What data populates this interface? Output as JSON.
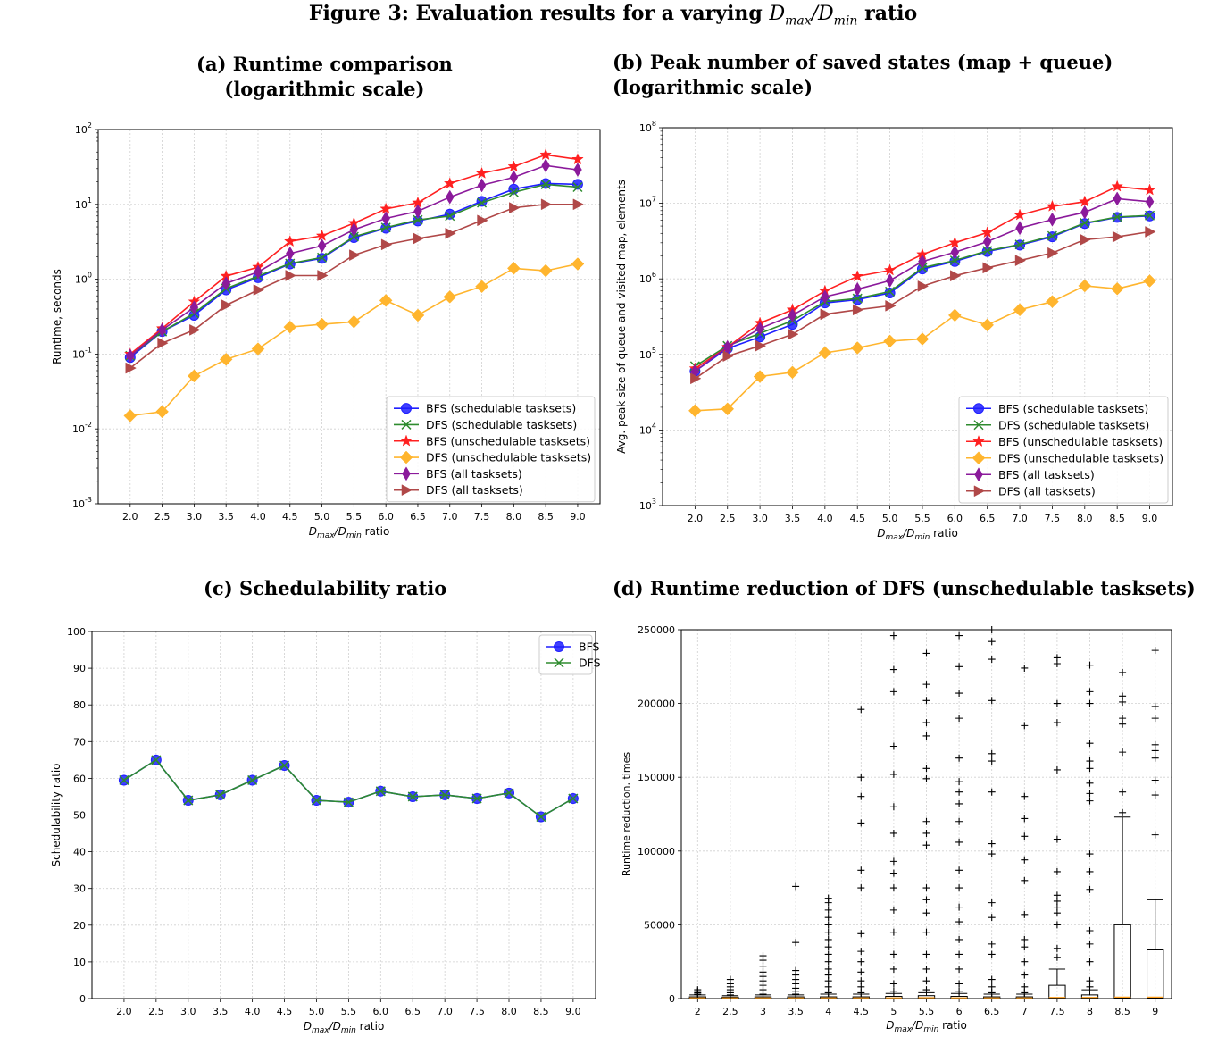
{
  "figure_title": "Figure 3: Evaluation results for a varying D_max/D_min ratio",
  "panels": {
    "a": {
      "title_line1": "(a) Runtime comparison",
      "title_line2": "(logarithmic scale)"
    },
    "b": {
      "title_line1": "(b) Peak number of saved states (map + queue)",
      "title_line2": "(logarithmic scale)"
    },
    "c": {
      "title_line1": "(c) Schedulability ratio",
      "title_line2": ""
    },
    "d": {
      "title_line1": "(d) Runtime reduction of DFS (unschedulable tasksets)",
      "title_line2": ""
    }
  },
  "colors": {
    "blue": "#1f1fff",
    "green": "#2e8b2e",
    "red": "#ff2020",
    "orange": "#ffb52e",
    "purple": "#8b1a9b",
    "brown": "#b04848"
  },
  "chart_data": [
    {
      "type": "line",
      "title": "(a) Runtime comparison (logarithmic scale)",
      "xlabel": "D_max/D_min ratio",
      "ylabel": "Runtime, seconds",
      "yscale": "log",
      "ylim": [
        0.001,
        100
      ],
      "grid": true,
      "legend_position": "lower-right",
      "x": [
        2.0,
        2.5,
        3.0,
        3.5,
        4.0,
        4.5,
        5.0,
        5.5,
        6.0,
        6.5,
        7.0,
        7.5,
        8.0,
        8.5,
        9.0
      ],
      "x_tick_labels": [
        "2.0",
        "2.5",
        "3.0",
        "3.5",
        "4.0",
        "4.5",
        "5.0",
        "5.5",
        "6.0",
        "6.5",
        "7.0",
        "7.5",
        "8.0",
        "8.5",
        "9.0"
      ],
      "series": [
        {
          "name": "BFS (schedulable tasksets)",
          "color": "#1f1fff",
          "marker": "circle",
          "values": [
            0.09,
            0.2,
            0.33,
            0.72,
            1.05,
            1.6,
            1.9,
            3.6,
            4.8,
            6.0,
            7.4,
            11.0,
            16.0,
            19.0,
            18.5
          ]
        },
        {
          "name": "DFS (schedulable tasksets)",
          "color": "#2e8b2e",
          "marker": "x",
          "values": [
            0.095,
            0.2,
            0.35,
            0.75,
            1.1,
            1.62,
            1.95,
            3.7,
            4.9,
            6.2,
            7.0,
            10.5,
            14.5,
            18.5,
            17.0
          ]
        },
        {
          "name": "BFS (unschedulable tasksets)",
          "color": "#ff2020",
          "marker": "star",
          "values": [
            0.1,
            0.22,
            0.5,
            1.1,
            1.45,
            3.2,
            3.8,
            5.6,
            8.7,
            10.5,
            19.0,
            26.0,
            32.0,
            46.0,
            40.0
          ]
        },
        {
          "name": "DFS (unschedulable tasksets)",
          "color": "#ffb52e",
          "marker": "diamond",
          "values": [
            0.015,
            0.017,
            0.051,
            0.085,
            0.117,
            0.23,
            0.25,
            0.27,
            0.52,
            0.33,
            0.58,
            0.8,
            1.4,
            1.3,
            1.6
          ]
        },
        {
          "name": "BFS (all tasksets)",
          "color": "#8b1a9b",
          "marker": "thin_diamond",
          "values": [
            0.095,
            0.21,
            0.42,
            0.88,
            1.25,
            2.2,
            2.8,
            4.6,
            6.5,
            8.1,
            12.5,
            18.0,
            23.0,
            33.0,
            29.0
          ]
        },
        {
          "name": "DFS (all tasksets)",
          "color": "#b04848",
          "marker": "triangle-right",
          "values": [
            0.065,
            0.14,
            0.21,
            0.45,
            0.72,
            1.12,
            1.12,
            2.1,
            2.9,
            3.5,
            4.1,
            6.1,
            9.0,
            10.0,
            10.0
          ]
        }
      ]
    },
    {
      "type": "line",
      "title": "(b) Peak number of saved states (map + queue) (logarithmic scale)",
      "xlabel": "D_max/D_min ratio",
      "ylabel": "Avg. peak size of queue and visited map, elements",
      "yscale": "log",
      "ylim": [
        1000,
        100000000
      ],
      "grid": true,
      "legend_position": "lower-right",
      "x": [
        2.0,
        2.5,
        3.0,
        3.5,
        4.0,
        4.5,
        5.0,
        5.5,
        6.0,
        6.5,
        7.0,
        7.5,
        8.0,
        8.5,
        9.0
      ],
      "x_tick_labels": [
        "2.0",
        "2.5",
        "3.0",
        "3.5",
        "4.0",
        "4.5",
        "5.0",
        "5.5",
        "6.0",
        "6.5",
        "7.0",
        "7.5",
        "8.0",
        "8.5",
        "9.0"
      ],
      "series": [
        {
          "name": "BFS (schedulable tasksets)",
          "color": "#1f1fff",
          "marker": "circle",
          "values": [
            60000,
            120000,
            170000,
            250000,
            480000,
            530000,
            650000,
            1350000,
            1700000,
            2300000,
            2800000,
            3600000,
            5400000,
            6500000,
            6800000
          ]
        },
        {
          "name": "DFS (schedulable tasksets)",
          "color": "#2e8b2e",
          "marker": "x",
          "values": [
            70000,
            130000,
            190000,
            280000,
            500000,
            550000,
            680000,
            1400000,
            1750000,
            2350000,
            2850000,
            3700000,
            5500000,
            6600000,
            6900000
          ]
        },
        {
          "name": "BFS (unschedulable tasksets)",
          "color": "#ff2020",
          "marker": "star",
          "values": [
            65000,
            125000,
            260000,
            390000,
            690000,
            1080000,
            1300000,
            2100000,
            3000000,
            4100000,
            7000000,
            9100000,
            10500000,
            16700000,
            15000000
          ]
        },
        {
          "name": "DFS (unschedulable tasksets)",
          "color": "#ffb52e",
          "marker": "diamond",
          "values": [
            18000,
            19000,
            51000,
            58000,
            105000,
            122000,
            150000,
            160000,
            330000,
            245000,
            390000,
            500000,
            810000,
            740000,
            940000
          ]
        },
        {
          "name": "BFS (all tasksets)",
          "color": "#8b1a9b",
          "marker": "thin_diamond",
          "values": [
            60000,
            125000,
            220000,
            330000,
            580000,
            730000,
            950000,
            1700000,
            2250000,
            3100000,
            4700000,
            6100000,
            7600000,
            11500000,
            10500000
          ]
        },
        {
          "name": "DFS (all tasksets)",
          "color": "#b04848",
          "marker": "triangle-right",
          "values": [
            48000,
            95000,
            130000,
            185000,
            340000,
            390000,
            440000,
            800000,
            1100000,
            1400000,
            1750000,
            2200000,
            3300000,
            3600000,
            4200000
          ]
        }
      ]
    },
    {
      "type": "line",
      "title": "(c) Schedulability ratio",
      "xlabel": "D_max/D_min ratio",
      "ylabel": "Schedulability ratio",
      "ylim": [
        0,
        100
      ],
      "grid": true,
      "legend_position": "top-right",
      "x": [
        2.0,
        2.5,
        3.0,
        3.5,
        4.0,
        4.5,
        5.0,
        5.5,
        6.0,
        6.5,
        7.0,
        7.5,
        8.0,
        8.5,
        9.0
      ],
      "x_tick_labels": [
        "2.0",
        "2.5",
        "3.0",
        "3.5",
        "4.0",
        "4.5",
        "5.0",
        "5.5",
        "6.0",
        "6.5",
        "7.0",
        "7.5",
        "8.0",
        "8.5",
        "9.0"
      ],
      "y_tick_labels": [
        "0",
        "10",
        "20",
        "30",
        "40",
        "50",
        "60",
        "70",
        "80",
        "90",
        "100"
      ],
      "series": [
        {
          "name": "BFS",
          "color": "#1f1fff",
          "marker": "circle",
          "values": [
            59.5,
            65.0,
            54.0,
            55.5,
            59.5,
            63.5,
            54.0,
            53.5,
            56.5,
            55.0,
            55.5,
            54.5,
            56.0,
            49.5,
            54.5
          ]
        },
        {
          "name": "DFS",
          "color": "#2e8b2e",
          "marker": "x",
          "values": [
            59.5,
            65.0,
            54.0,
            55.5,
            59.5,
            63.5,
            54.0,
            53.5,
            56.5,
            55.0,
            55.5,
            54.5,
            56.0,
            49.5,
            54.5
          ]
        }
      ]
    },
    {
      "type": "box",
      "title": "(d) Runtime reduction of DFS (unschedulable tasksets)",
      "xlabel": "D_max/D_min ratio",
      "ylabel": "Runtime reduction, times",
      "ylim": [
        0,
        250000
      ],
      "grid": true,
      "categories": [
        "2",
        "2.5",
        "3",
        "3.5",
        "4",
        "4.5",
        "5",
        "5.5",
        "6",
        "6.5",
        "7",
        "7.5",
        "8",
        "8.5",
        "9"
      ],
      "y_tick_labels": [
        "0",
        "50000",
        "100000",
        "150000",
        "200000",
        "250000"
      ],
      "boxes": [
        {
          "q1": 200,
          "median": 500,
          "q3": 1200,
          "whisker_high": 2500,
          "outliers": [
            3000,
            4000,
            5000,
            6000
          ]
        },
        {
          "q1": 200,
          "median": 500,
          "q3": 1000,
          "whisker_high": 2000,
          "outliers": [
            2500,
            4000,
            6000,
            8000,
            10000,
            13000
          ]
        },
        {
          "q1": 200,
          "median": 500,
          "q3": 1200,
          "whisker_high": 2500,
          "outliers": [
            3000,
            6000,
            9000,
            12000,
            15000,
            18000,
            22000,
            26000,
            29000
          ]
        },
        {
          "q1": 200,
          "median": 500,
          "q3": 1200,
          "whisker_high": 2500,
          "outliers": [
            3000,
            5000,
            7000,
            10000,
            13000,
            16000,
            19000,
            38000,
            76000
          ]
        },
        {
          "q1": 200,
          "median": 500,
          "q3": 1200,
          "whisker_high": 3000,
          "outliers": [
            4000,
            8000,
            12000,
            16000,
            20000,
            25000,
            30000,
            35000,
            40000,
            45000,
            50000,
            55000,
            60000,
            65000,
            68000
          ]
        },
        {
          "q1": 200,
          "median": 500,
          "q3": 1200,
          "whisker_high": 3000,
          "outliers": [
            4000,
            8000,
            12000,
            18000,
            25000,
            32000,
            44000,
            75000,
            87000,
            119000,
            137000,
            150000,
            196000
          ]
        },
        {
          "q1": 200,
          "median": 500,
          "q3": 1500,
          "whisker_high": 3500,
          "outliers": [
            5000,
            10000,
            20000,
            30000,
            45000,
            60000,
            75000,
            85000,
            93000,
            112000,
            130000,
            152000,
            171000,
            208000,
            223000,
            246000
          ]
        },
        {
          "q1": 200,
          "median": 600,
          "q3": 2000,
          "whisker_high": 4000,
          "outliers": [
            6000,
            12000,
            20000,
            30000,
            45000,
            58000,
            67000,
            75000,
            104000,
            112000,
            120000,
            149000,
            156000,
            178000,
            187000,
            202000,
            213000,
            234000
          ]
        },
        {
          "q1": 200,
          "median": 500,
          "q3": 1500,
          "whisker_high": 3500,
          "outliers": [
            5000,
            10000,
            20000,
            30000,
            40000,
            52000,
            62000,
            75000,
            87000,
            106000,
            120000,
            132000,
            140000,
            147000,
            163000,
            190000,
            207000,
            225000,
            246000
          ]
        },
        {
          "q1": 200,
          "median": 500,
          "q3": 1200,
          "whisker_high": 3000,
          "outliers": [
            4000,
            8000,
            13000,
            30000,
            37000,
            55000,
            65000,
            98000,
            105000,
            140000,
            161000,
            166000,
            202000,
            230000,
            242000,
            250000
          ]
        },
        {
          "q1": 200,
          "median": 500,
          "q3": 1200,
          "whisker_high": 3000,
          "outliers": [
            4000,
            8000,
            16000,
            25000,
            35000,
            40000,
            57000,
            80000,
            94000,
            110000,
            122000,
            137000,
            185000,
            224000
          ]
        },
        {
          "q1": 300,
          "median": 800,
          "q3": 9000,
          "whisker_high": 20000,
          "outliers": [
            28000,
            34000,
            50000,
            58000,
            62000,
            66000,
            70000,
            86000,
            108000,
            155000,
            187000,
            200000,
            227000,
            231000
          ]
        },
        {
          "q1": 300,
          "median": 800,
          "q3": 2500,
          "whisker_high": 6000,
          "outliers": [
            8000,
            12000,
            25000,
            37000,
            46000,
            74000,
            86000,
            98000,
            134000,
            139000,
            146000,
            156000,
            161000,
            173000,
            200000,
            208000,
            226000
          ]
        },
        {
          "q1": 500,
          "median": 1000,
          "q3": 50000,
          "whisker_high": 123000,
          "outliers": [
            126000,
            140000,
            167000,
            186000,
            190000,
            201000,
            205000,
            221000
          ]
        },
        {
          "q1": 500,
          "median": 1000,
          "q3": 33000,
          "whisker_high": 67000,
          "outliers": [
            111000,
            138000,
            148000,
            163000,
            168000,
            172000,
            190000,
            198000,
            236000
          ]
        }
      ]
    }
  ]
}
